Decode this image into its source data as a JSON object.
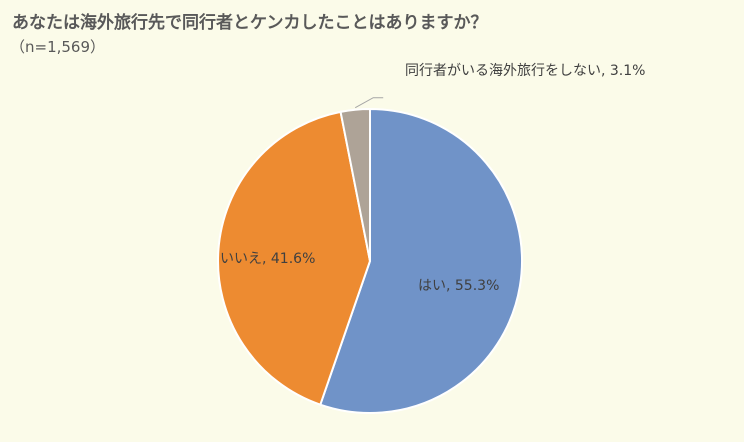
{
  "title": "あなたは海外旅行先で同行者とケンカしたことはありますか？",
  "subtitle": "（n=1,569）",
  "chart_data": {
    "type": "pie",
    "title": "あなたは海外旅行先で同行者とケンカしたことはありますか？",
    "subtitle": "（n=1,569）",
    "slices": [
      {
        "label": "はい",
        "value": 55.3,
        "color": "#7093c8",
        "display": "はい, 55.3%"
      },
      {
        "label": "いいえ",
        "value": 41.6,
        "color": "#ed8b31",
        "display": "いいえ, 41.6%"
      },
      {
        "label": "同行者がいる海外旅行をしない",
        "value": 3.1,
        "color": "#aea397",
        "display": "同行者がいる海外旅行をしない, 3.1%"
      }
    ],
    "legend": "none"
  }
}
